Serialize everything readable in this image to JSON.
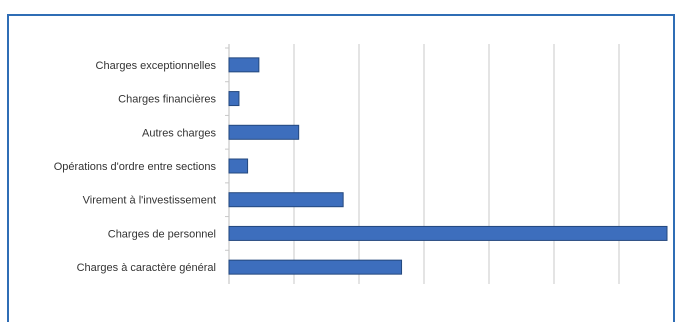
{
  "chart_data": {
    "type": "bar",
    "orientation": "horizontal",
    "title": "",
    "xlabel": "",
    "ylabel": "",
    "categories": [
      "Charges exceptionnelles",
      "Charges financières",
      "Autres charges",
      "Opérations d'ordre entre sections",
      "Virement à l'investissement",
      "Charges de personnel",
      "Charges à caractère général"
    ],
    "values": [
      0.45,
      0.15,
      1.05,
      0.28,
      1.72,
      6.6,
      2.6
    ],
    "xlim": [
      0,
      6.6
    ],
    "grid": true,
    "bar_color": "#3d6ebd",
    "bar_edge_color": "#24487e",
    "grid_color": "#c8c8c8"
  }
}
